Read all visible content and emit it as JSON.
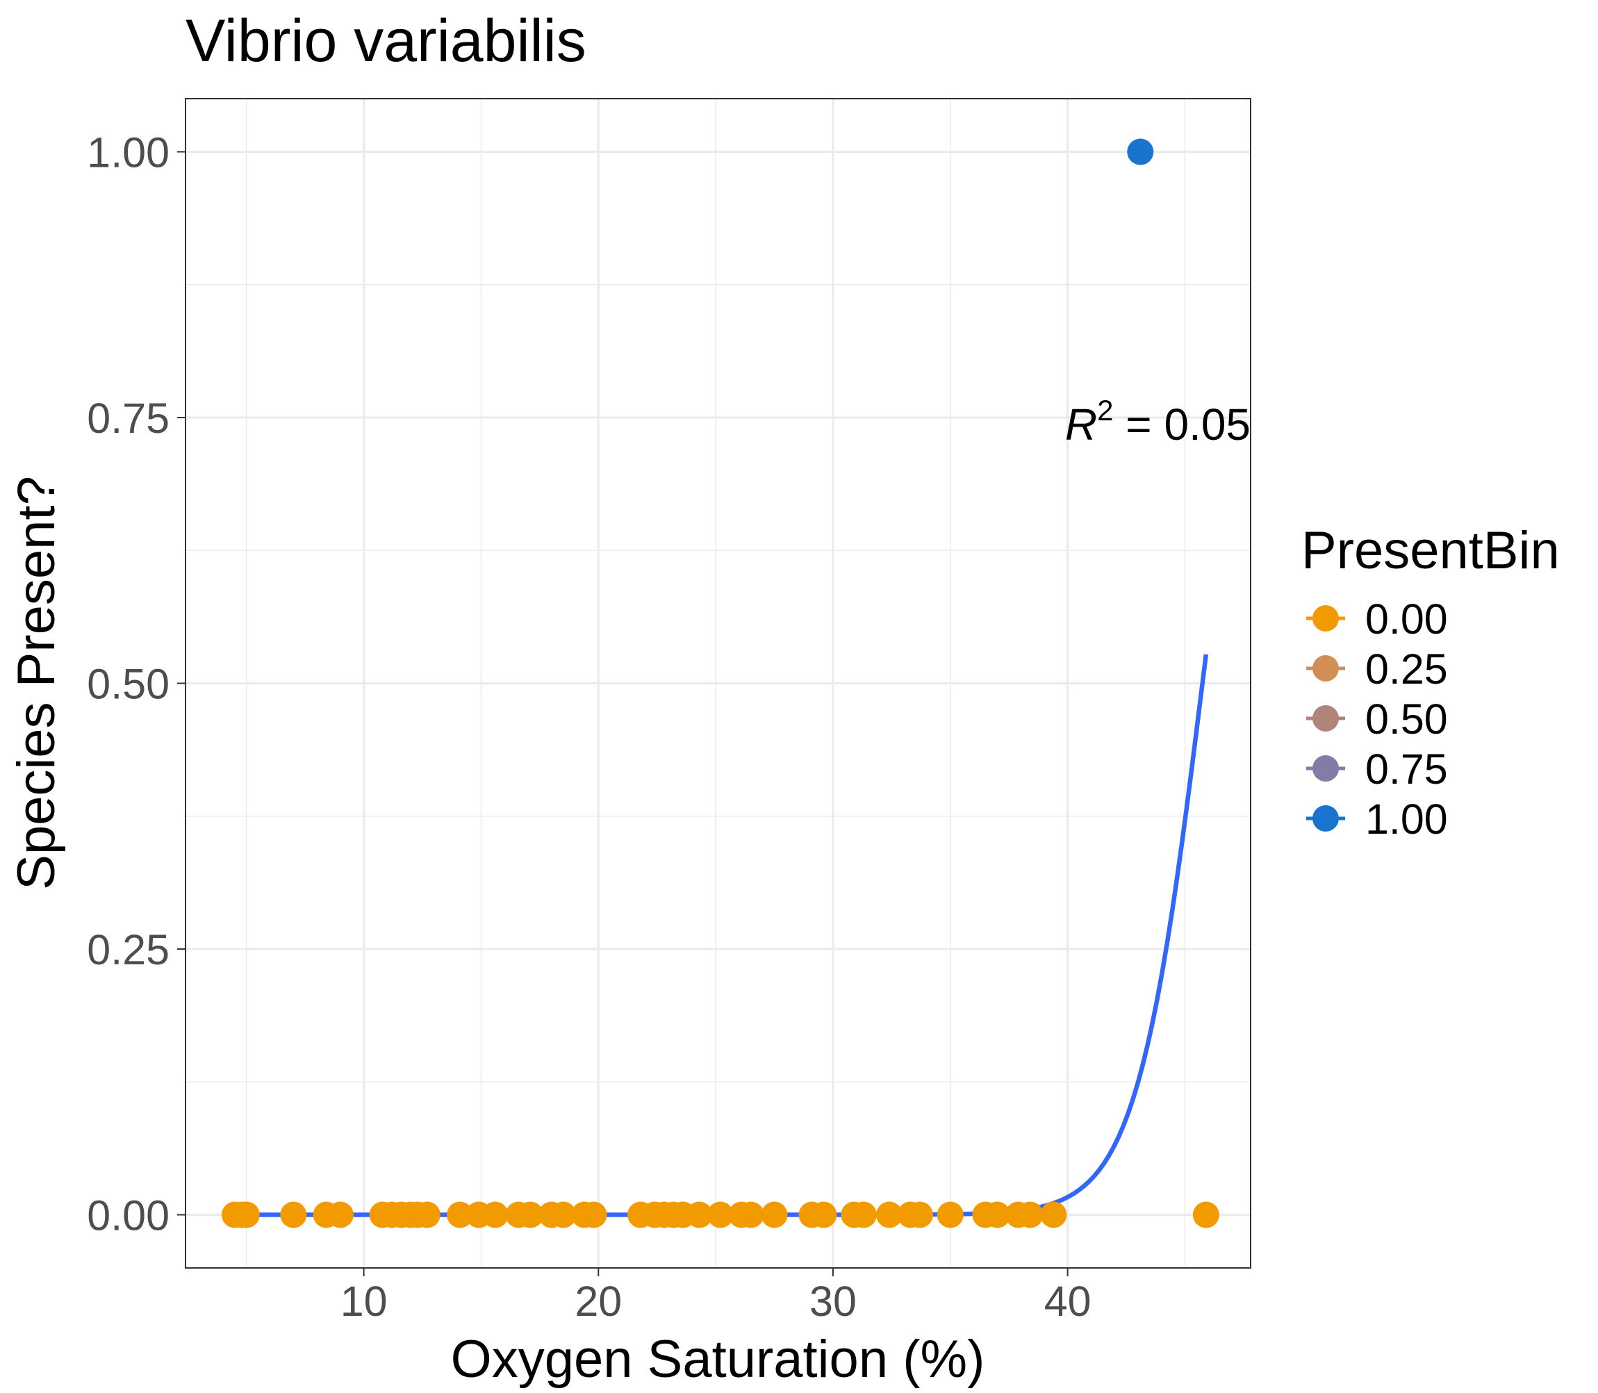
{
  "chart_data": {
    "type": "scatter",
    "title": "Vibrio variabilis",
    "xlabel": "Oxygen Saturation (%)",
    "ylabel": "Species Present?",
    "xlim": [
      2.4,
      47.8
    ],
    "ylim": [
      -0.05,
      1.05
    ],
    "x_ticks": [
      10,
      20,
      30,
      40
    ],
    "x_tick_labels": [
      "10",
      "20",
      "30",
      "40"
    ],
    "y_ticks": [
      0,
      0.25,
      0.5,
      0.75,
      1
    ],
    "y_tick_labels": [
      "0.00",
      "0.25",
      "0.50",
      "0.75",
      "1.00"
    ],
    "grid": true,
    "annotation": {
      "italic": "R",
      "superscript": "2",
      "rest": " = 0.05"
    },
    "legend": {
      "title": "PresentBin",
      "position": "right",
      "items": [
        {
          "label": "0.00",
          "color": "#F29B00"
        },
        {
          "label": "0.25",
          "color": "#D18F55"
        },
        {
          "label": "0.50",
          "color": "#B08579"
        },
        {
          "label": "0.75",
          "color": "#847CA6"
        },
        {
          "label": "1.00",
          "color": "#1874CD"
        }
      ]
    },
    "series": [
      {
        "color": "#F29B00",
        "points": [
          [
            4.5,
            0
          ],
          [
            4.8,
            0
          ],
          [
            5.0,
            0
          ],
          [
            7.0,
            0
          ],
          [
            8.4,
            0
          ],
          [
            9.0,
            0
          ],
          [
            10.8,
            0
          ],
          [
            11.2,
            0
          ],
          [
            11.6,
            0
          ],
          [
            12.0,
            0
          ],
          [
            12.3,
            0
          ],
          [
            12.7,
            0
          ],
          [
            14.1,
            0
          ],
          [
            14.9,
            0
          ],
          [
            15.6,
            0
          ],
          [
            16.6,
            0
          ],
          [
            17.1,
            0
          ],
          [
            18.0,
            0
          ],
          [
            18.5,
            0
          ],
          [
            19.4,
            0
          ],
          [
            19.8,
            0
          ],
          [
            21.8,
            0
          ],
          [
            22.4,
            0
          ],
          [
            22.8,
            0
          ],
          [
            23.2,
            0
          ],
          [
            23.6,
            0
          ],
          [
            24.3,
            0
          ],
          [
            25.2,
            0
          ],
          [
            26.1,
            0
          ],
          [
            26.5,
            0
          ],
          [
            27.5,
            0
          ],
          [
            29.1,
            0
          ],
          [
            29.6,
            0
          ],
          [
            30.9,
            0
          ],
          [
            31.3,
            0
          ],
          [
            32.4,
            0
          ],
          [
            33.3,
            0
          ],
          [
            33.7,
            0
          ],
          [
            35.0,
            0
          ],
          [
            36.5,
            0
          ],
          [
            37.0,
            0
          ],
          [
            37.9,
            0
          ],
          [
            38.4,
            0
          ],
          [
            39.4,
            0
          ],
          [
            45.9,
            0
          ]
        ]
      },
      {
        "color": "#1874CD",
        "points": [
          [
            43.1,
            1
          ]
        ]
      }
    ],
    "fit": {
      "type": "logistic",
      "color": "#3366FF",
      "intercept": -32.48,
      "slope": 0.71,
      "x_range": [
        4.5,
        45.9
      ]
    }
  }
}
